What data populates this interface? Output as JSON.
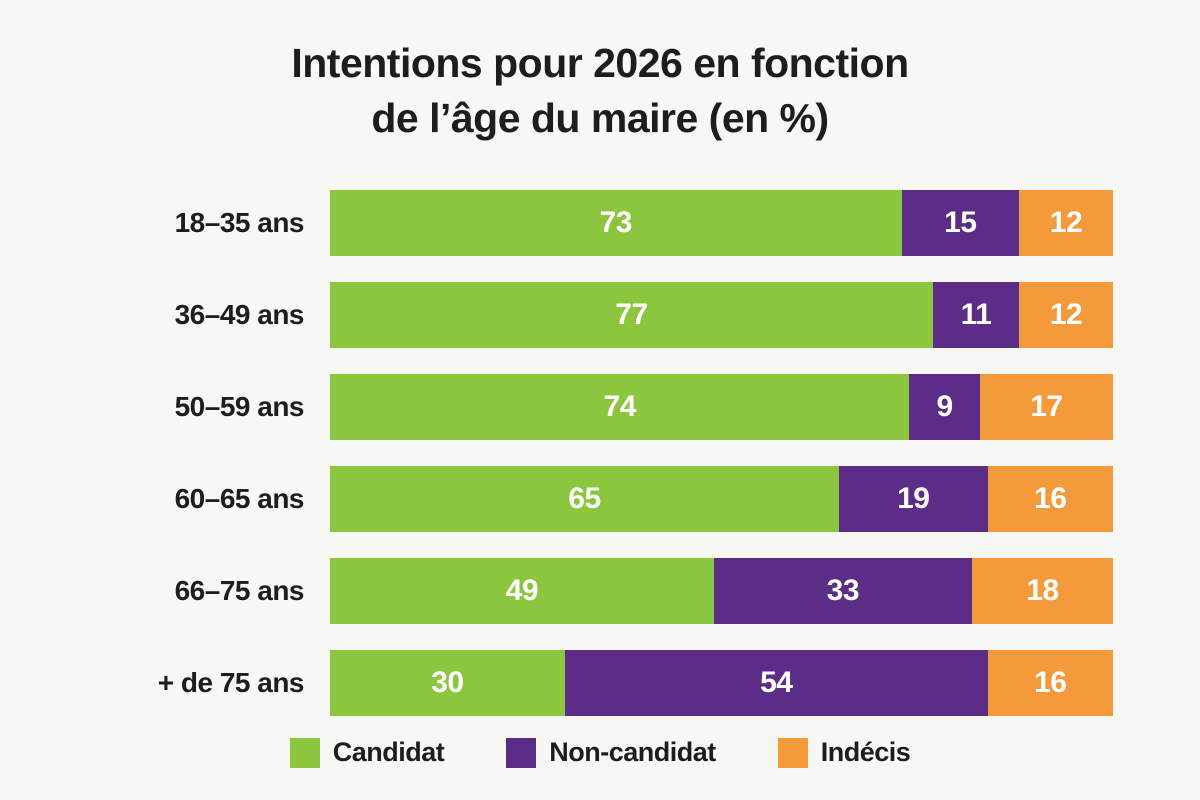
{
  "page": {
    "background": "#f7f7f4",
    "text_color": "#1d1d1b"
  },
  "header": {
    "title_line1": "Intentions pour 2026 en fonction",
    "title_line2": "de l’âge du maire (en %)"
  },
  "chart_data": {
    "type": "bar",
    "orientation": "horizontal-stacked",
    "title": "Intentions pour 2026 en fonction de l’âge du maire (en %)",
    "categories": [
      "18–35 ans",
      "36–49 ans",
      "50–59 ans",
      "60–65 ans",
      "66–75 ans",
      "+ de 75 ans"
    ],
    "series": [
      {
        "name": "Candidat",
        "color": "#8cc63f",
        "values": [
          73,
          77,
          74,
          65,
          49,
          30
        ]
      },
      {
        "name": "Non-candidat",
        "color": "#5b2d86",
        "values": [
          15,
          11,
          9,
          19,
          33,
          54
        ]
      },
      {
        "name": "Indécis",
        "color": "#f49a3b",
        "values": [
          12,
          12,
          17,
          16,
          18,
          16
        ]
      }
    ],
    "xlim": [
      0,
      100
    ],
    "value_labels": "inside-white",
    "legend_position": "bottom",
    "grid": false
  }
}
